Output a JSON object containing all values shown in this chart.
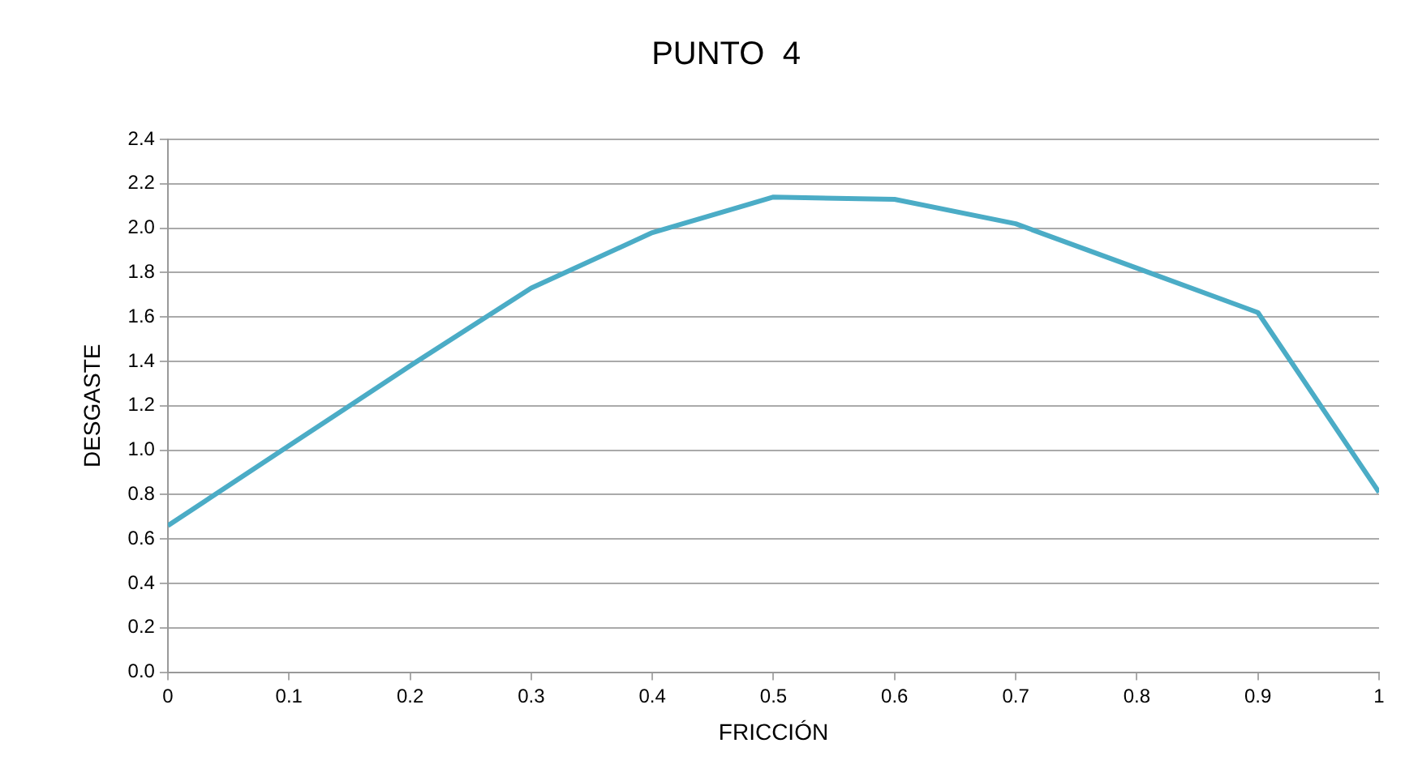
{
  "chart_data": {
    "type": "line",
    "title": "PUNTO  4",
    "xlabel": "FRICCIÓN",
    "ylabel": "DESGASTE",
    "x": [
      0,
      0.1,
      0.2,
      0.3,
      0.4,
      0.5,
      0.6,
      0.7,
      0.8,
      0.9,
      1
    ],
    "series": [
      {
        "color": "#4bacc6",
        "values": [
          0.66,
          1.02,
          1.38,
          1.73,
          1.98,
          2.14,
          2.13,
          2.02,
          1.82,
          1.62,
          0.81
        ]
      }
    ],
    "xlim": [
      0,
      1
    ],
    "xticks": [
      0,
      0.1,
      0.2,
      0.3,
      0.4,
      0.5,
      0.6,
      0.7,
      0.8,
      0.9,
      1
    ],
    "ylim": [
      0,
      2.4
    ],
    "yticks": [
      {
        "value": 0,
        "label": "0.0"
      },
      {
        "value": 0.2,
        "label": "0.2"
      },
      {
        "value": 0.4,
        "label": "0.4"
      },
      {
        "value": 0.6,
        "label": "0.6"
      },
      {
        "value": 0.8,
        "label": "0.8"
      },
      {
        "value": 1,
        "label": "1.0"
      },
      {
        "value": 1.2,
        "label": "1.2"
      },
      {
        "value": 1.4,
        "label": "1.4"
      },
      {
        "value": 1.6,
        "label": "1.6"
      },
      {
        "value": 1.8,
        "label": "1.8"
      },
      {
        "value": 2,
        "label": "2.0"
      },
      {
        "value": 2.2,
        "label": "2.2"
      },
      {
        "value": 2.4,
        "label": "2.4"
      }
    ],
    "grid": "y",
    "legend": false,
    "marker": "none",
    "line_style": "solid"
  }
}
